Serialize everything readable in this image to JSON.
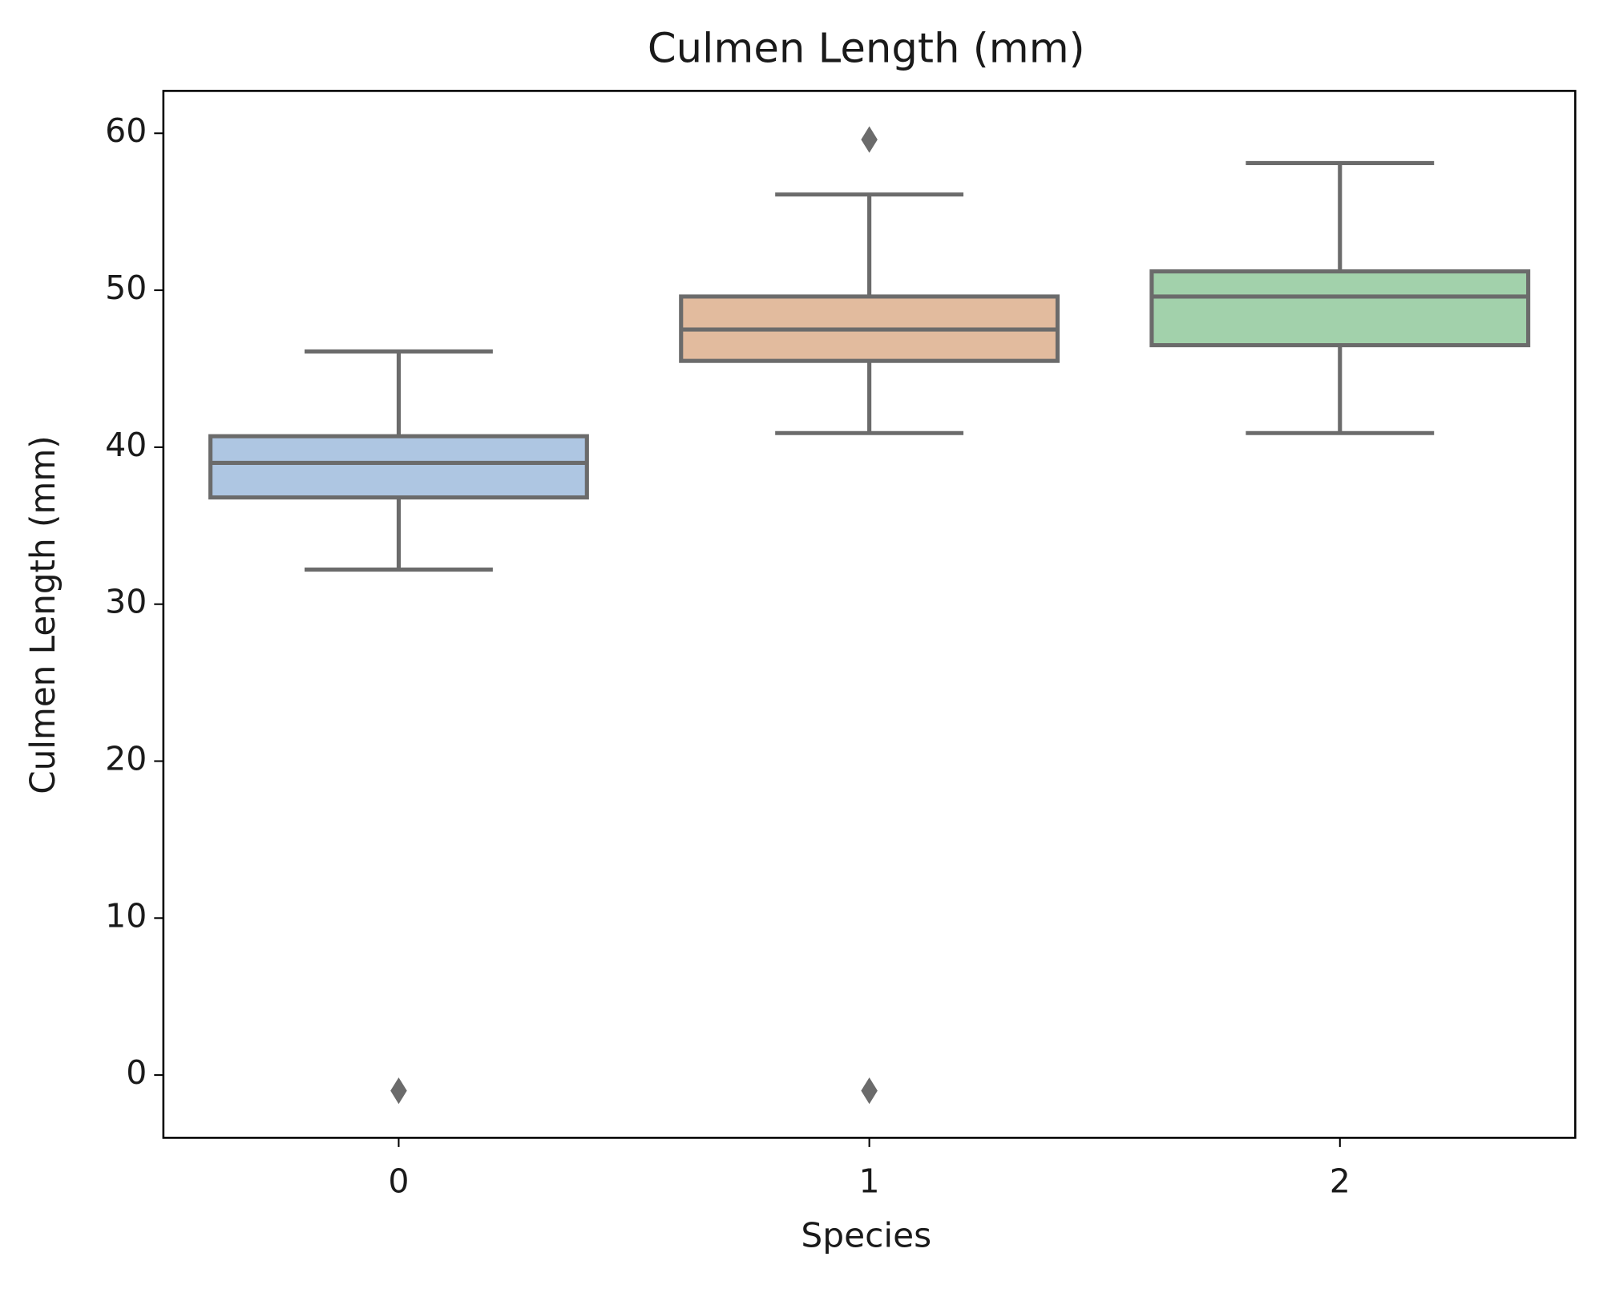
{
  "chart_data": {
    "type": "box",
    "title": "Culmen Length (mm)",
    "xlabel": "Species",
    "ylabel": "Culmen Length (mm)",
    "categories": [
      "0",
      "1",
      "2"
    ],
    "boxes": [
      {
        "whislo": 32.2,
        "q1": 36.8,
        "med": 39.0,
        "q3": 40.7,
        "whishi": 46.1,
        "fliers": [
          -1.0
        ],
        "color": "#aec6e2"
      },
      {
        "whislo": 40.9,
        "q1": 45.5,
        "med": 47.5,
        "q3": 49.6,
        "whishi": 56.1,
        "fliers": [
          59.6,
          -1.0
        ],
        "color": "#e2bb9e"
      },
      {
        "whislo": 40.9,
        "q1": 46.5,
        "med": 49.6,
        "q3": 51.2,
        "whishi": 58.1,
        "fliers": [],
        "color": "#a2d1ab"
      }
    ],
    "line_color": "#6b6b6b",
    "ylim": [
      -4.0,
      62.7
    ],
    "yticks": [
      0,
      10,
      20,
      30,
      40,
      50,
      60
    ]
  }
}
